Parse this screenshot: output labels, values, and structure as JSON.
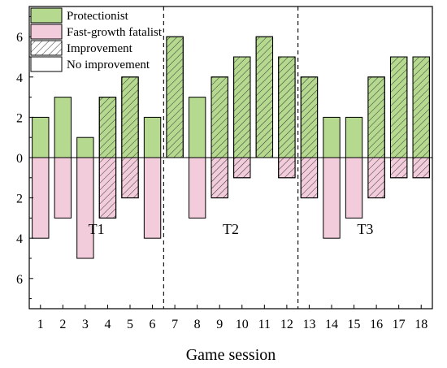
{
  "chart_data": {
    "type": "bar",
    "title": "",
    "xlabel": "Game session",
    "ylabel": "",
    "categories": [
      "1",
      "2",
      "3",
      "4",
      "5",
      "6",
      "7",
      "8",
      "9",
      "10",
      "11",
      "12",
      "13",
      "14",
      "15",
      "16",
      "17",
      "18"
    ],
    "ylim": [
      -7.5,
      7.5
    ],
    "yticks": [
      -6,
      -4,
      -2,
      0,
      2,
      4,
      6
    ],
    "ytick_labels": [
      "6",
      "4",
      "2",
      "0",
      "2",
      "4",
      "6"
    ],
    "grid": false,
    "legend_position": "top-left",
    "series": [
      {
        "name": "Protectionist",
        "color": "#b5d98e",
        "values": [
          2,
          3,
          1,
          3,
          4,
          2,
          6,
          3,
          4,
          5,
          6,
          5,
          4,
          2,
          2,
          4,
          5,
          5
        ]
      },
      {
        "name": "Fast-growth fatalist",
        "color": "#f2ccdb",
        "values": [
          -4,
          -3,
          -5,
          -3,
          -2,
          -4,
          0,
          -3,
          -2,
          -1,
          0,
          -1,
          -2,
          -4,
          -3,
          -2,
          -1,
          -1
        ]
      }
    ],
    "improvement": [
      false,
      false,
      false,
      true,
      true,
      false,
      true,
      false,
      true,
      true,
      true,
      true,
      true,
      false,
      false,
      true,
      true,
      true
    ],
    "legend": [
      {
        "label": "Protectionist",
        "swatch": "protectionist"
      },
      {
        "label": "Fast-growth fatalist",
        "swatch": "fatalist"
      },
      {
        "label": "Improvement",
        "swatch": "hatch"
      },
      {
        "label": "No improvement",
        "swatch": "plain"
      }
    ],
    "groups": [
      {
        "label": "T1",
        "sessions": [
          1,
          6
        ]
      },
      {
        "label": "T2",
        "sessions": [
          7,
          12
        ]
      },
      {
        "label": "T3",
        "sessions": [
          13,
          18
        ]
      }
    ]
  }
}
